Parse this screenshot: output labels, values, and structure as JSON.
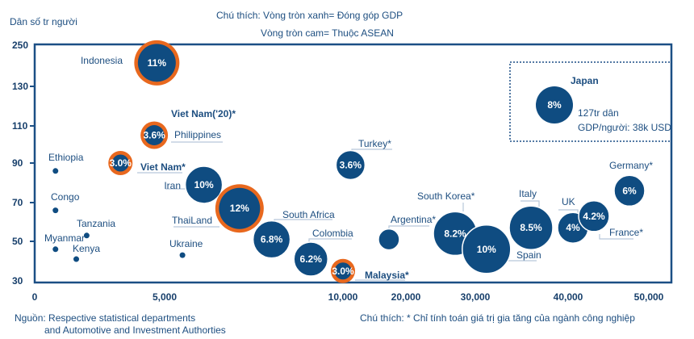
{
  "chart_data": {
    "type": "scatter",
    "subtype": "bubble",
    "ylabel": "Dân số tr người",
    "xlabel": "",
    "legend_note": [
      "Chú thích: Vòng tròn xanh= Đóng góp GDP",
      "Vòng tròn cam= Thuộc ASEAN"
    ],
    "x_ticks": [
      0,
      5000,
      10000,
      20000,
      30000,
      40000,
      50000
    ],
    "x_tick_labels": [
      "0",
      "5,000",
      "10,000",
      "20,000",
      "30,000",
      "40,000",
      "50,000"
    ],
    "y_ticks": [
      30,
      50,
      70,
      90,
      110,
      130,
      250
    ],
    "y_tick_labels": [
      "30",
      "50",
      "70",
      "90",
      "110",
      "130",
      "250"
    ],
    "scale": "non-linear (piecewise) axes",
    "grid": false,
    "colors": {
      "bubble": "#0f4c81",
      "asean_ring": "#e8681e",
      "text": "#1d4e80"
    },
    "points": [
      {
        "label": "Indonesia",
        "x": 4700,
        "y": 200,
        "value": "11%",
        "asean": true
      },
      {
        "label": "Philippines",
        "x": 4600,
        "y": 105,
        "value": "3.6%",
        "asean": true
      },
      {
        "label": "Viet Nam*",
        "x": 3300,
        "y": 90,
        "value": "3.0%",
        "asean": true
      },
      {
        "label": "Iran",
        "x": 6100,
        "y": 79,
        "value": "10%",
        "asean": false
      },
      {
        "label": "ThaiLand",
        "x": 7100,
        "y": 67,
        "value": "12%",
        "asean": true
      },
      {
        "label": "South Africa",
        "x": 8000,
        "y": 51,
        "value": "6.8%",
        "asean": false
      },
      {
        "label": "Colombia",
        "x": 9100,
        "y": 41,
        "value": "6.2%",
        "asean": false
      },
      {
        "label": "Malaysia*",
        "x": 10000,
        "y": 35,
        "value": "3.0%",
        "asean": true
      },
      {
        "label": "Turkey*",
        "x": 11200,
        "y": 89,
        "value": "3.6%",
        "asean": false
      },
      {
        "label": "Argentina*",
        "x": 17300,
        "y": 51,
        "value": "",
        "asean": false
      },
      {
        "label": "South Korea*",
        "x": 27100,
        "y": 54,
        "value": "8.2%",
        "asean": false
      },
      {
        "label": "Spain",
        "x": 31200,
        "y": 46,
        "value": "10%",
        "asean": false
      },
      {
        "label": "Italy",
        "x": 36000,
        "y": 57,
        "value": "8.5%",
        "asean": false
      },
      {
        "label": "UK",
        "x": 40600,
        "y": 57,
        "value": "4%",
        "asean": false
      },
      {
        "label": "France*",
        "x": 43200,
        "y": 63,
        "value": "4.2%",
        "asean": false
      },
      {
        "label": "Germany*",
        "x": 47600,
        "y": 76,
        "value": "6%",
        "asean": false
      },
      {
        "label": "Ethiopia",
        "x": 800,
        "y": 86,
        "value": "",
        "asean": false
      },
      {
        "label": "Congo",
        "x": 800,
        "y": 66,
        "value": "",
        "asean": false
      },
      {
        "label": "Tanzania",
        "x": 2000,
        "y": 53,
        "value": "",
        "asean": false
      },
      {
        "label": "Myanmar",
        "x": 800,
        "y": 46,
        "value": "",
        "asean": true
      },
      {
        "label": "Kenya",
        "x": 1600,
        "y": 41,
        "value": "",
        "asean": false
      },
      {
        "label": "Ukraine",
        "x": 5500,
        "y": 43,
        "value": "",
        "asean": false
      }
    ],
    "extra_labels": [
      "Viet Nam('20)*"
    ],
    "inset": {
      "title": "Japan",
      "value": "8%",
      "line1": "127tr dân",
      "line2": "GDP/người: 38k USD"
    }
  },
  "footer": {
    "source_line1": "Nguồn: Respective statistical departments",
    "source_line2": "and Automotive and Investment Authorties",
    "note": "Chú thích: * Chỉ tính toán giá trị gia tăng của ngành công nghiệp"
  }
}
